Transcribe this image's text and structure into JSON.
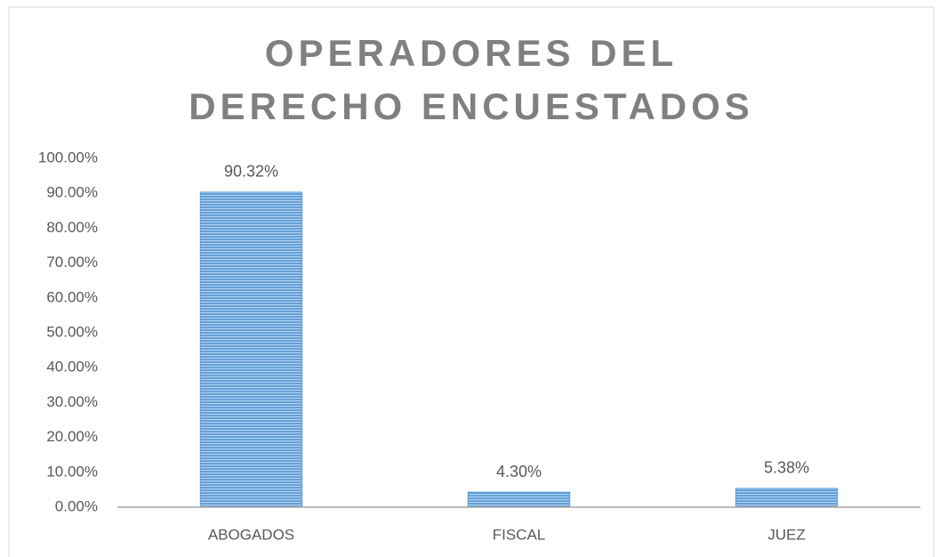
{
  "chart_data": {
    "type": "bar",
    "title": "OPERADORES DEL DERECHO ENCUESTADOS",
    "categories": [
      "ABOGADOS",
      "FISCAL",
      "JUEZ"
    ],
    "values": [
      90.32,
      4.3,
      5.38
    ],
    "value_labels": [
      "90.32%",
      "4.30%",
      "5.38%"
    ],
    "color": "#5b9bd5",
    "ylim": [
      0,
      100
    ],
    "yticks": [
      {
        "value": 0,
        "label": "0.00%"
      },
      {
        "value": 10,
        "label": "10.00%"
      },
      {
        "value": 20,
        "label": "20.00%"
      },
      {
        "value": 30,
        "label": "30.00%"
      },
      {
        "value": 40,
        "label": "40.00%"
      },
      {
        "value": 50,
        "label": "50.00%"
      },
      {
        "value": 60,
        "label": "60.00%"
      },
      {
        "value": 70,
        "label": "70.00%"
      },
      {
        "value": 80,
        "label": "80.00%"
      },
      {
        "value": 90,
        "label": "90.00%"
      },
      {
        "value": 100,
        "label": "100.00%"
      }
    ],
    "grid": false
  }
}
